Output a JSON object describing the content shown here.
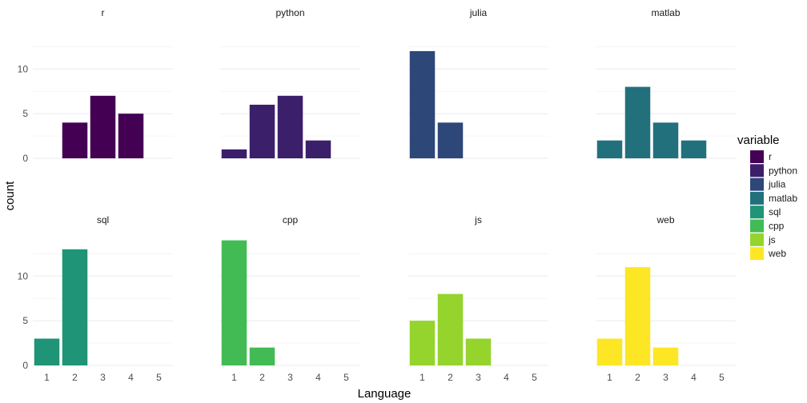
{
  "chart_data": {
    "type": "bar",
    "facet_layout": "2x4",
    "xlabel": "Language",
    "ylabel": "count",
    "x_ticks": [
      1,
      2,
      3,
      4,
      5
    ],
    "y_ticks": [
      0,
      5,
      10
    ],
    "ylim": [
      0,
      14.5
    ],
    "xlim": [
      0.5,
      5.5
    ],
    "grid": true,
    "legend": {
      "title": "variable",
      "placement": "right",
      "entries": [
        {
          "name": "r",
          "color": "#440154"
        },
        {
          "name": "python",
          "color": "#3B1F6B"
        },
        {
          "name": "julia",
          "color": "#2D4779"
        },
        {
          "name": "matlab",
          "color": "#23707D"
        },
        {
          "name": "sql",
          "color": "#1F9477"
        },
        {
          "name": "cpp",
          "color": "#42BB55"
        },
        {
          "name": "js",
          "color": "#94D42D"
        },
        {
          "name": "web",
          "color": "#FDE725"
        }
      ]
    },
    "panels": [
      {
        "name": "r",
        "x": [
          2,
          3,
          4
        ],
        "values": [
          4,
          7,
          5
        ]
      },
      {
        "name": "python",
        "x": [
          1,
          2,
          3,
          4
        ],
        "values": [
          1,
          6,
          7,
          2
        ]
      },
      {
        "name": "julia",
        "x": [
          1,
          2
        ],
        "values": [
          12,
          4
        ]
      },
      {
        "name": "matlab",
        "x": [
          1,
          2,
          3,
          4
        ],
        "values": [
          2,
          8,
          4,
          2
        ]
      },
      {
        "name": "sql",
        "x": [
          1,
          2
        ],
        "values": [
          3,
          13
        ]
      },
      {
        "name": "cpp",
        "x": [
          1,
          2
        ],
        "values": [
          14,
          2
        ]
      },
      {
        "name": "js",
        "x": [
          1,
          2,
          3
        ],
        "values": [
          5,
          8,
          3
        ]
      },
      {
        "name": "web",
        "x": [
          1,
          2,
          3
        ],
        "values": [
          3,
          11,
          2
        ]
      }
    ]
  }
}
